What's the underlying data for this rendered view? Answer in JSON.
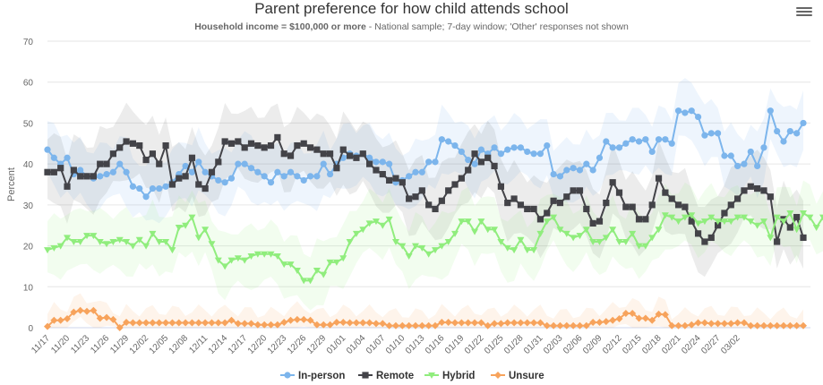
{
  "chart_data": {
    "type": "line",
    "title": "Parent preference for how child attends school",
    "subtitle_bold": "Household income = $100,000 or more",
    "subtitle_rest": " - National sample; 7-day window; 'Other' responses not shown",
    "xlabel": "",
    "ylabel": "Percent",
    "ylim": [
      0,
      70
    ],
    "yticks": [
      0,
      10,
      20,
      30,
      40,
      50,
      60,
      70
    ],
    "grid": true,
    "legend_position": "bottom-center",
    "x_start": "11/17",
    "x_end": "03/03",
    "xtick_labels": [
      "11/17",
      "11/20",
      "11/23",
      "11/26",
      "11/29",
      "12/02",
      "12/05",
      "12/08",
      "12/11",
      "12/14",
      "12/17",
      "12/20",
      "12/23",
      "12/26",
      "12/29",
      "01/01",
      "01/04",
      "01/07",
      "01/10",
      "01/13",
      "01/16",
      "01/19",
      "01/22",
      "01/25",
      "01/28",
      "01/31",
      "02/03",
      "02/06",
      "02/09",
      "02/12",
      "02/15",
      "02/18",
      "02/21",
      "02/24",
      "02/27",
      "03/02"
    ],
    "series": [
      {
        "name": "In-person",
        "color": "#7cb5ec",
        "marker": "circle",
        "values": [
          43.5,
          41.5,
          40,
          41.5,
          37.5,
          38.5,
          37,
          36.5,
          37,
          37.5,
          38,
          40,
          38,
          34.5,
          34,
          32,
          34,
          34,
          34.5,
          35.5,
          37.5,
          39.5,
          38,
          40.5,
          38,
          37,
          36,
          35.5,
          36.5,
          40,
          40,
          39,
          38,
          37,
          35.5,
          38,
          37,
          38,
          37,
          36,
          37,
          37,
          40,
          37.5,
          40,
          41.5,
          42.5,
          42,
          42.5,
          41.5,
          40.5,
          40.5,
          40,
          35.5,
          36,
          37,
          38,
          38,
          40.5,
          40.5,
          46,
          45.5,
          44.5,
          43,
          41,
          40,
          43.5,
          42.5,
          44,
          42.5,
          43.5,
          44,
          44,
          43,
          42.5,
          42.5,
          44.5,
          37.5,
          37,
          38.5,
          39,
          38.5,
          40,
          38.5,
          41.5,
          45.5,
          44,
          44,
          45,
          46,
          45.5,
          46,
          43,
          46,
          46,
          45,
          53,
          52.5,
          53,
          51.5,
          47,
          47.5,
          47.5,
          42,
          42,
          39.5,
          40,
          43,
          39.5,
          44,
          53,
          48,
          45.5,
          48,
          47.5,
          50
        ]
      },
      {
        "name": "Remote",
        "color": "#434348",
        "marker": "square",
        "values": [
          38,
          38,
          39,
          34.5,
          38.5,
          37,
          37,
          37,
          40,
          40,
          42.5,
          44,
          45.5,
          45,
          44.5,
          41,
          42.5,
          40,
          44.5,
          35,
          36.5,
          37,
          41.5,
          35,
          34,
          38,
          40.5,
          45.5,
          45,
          45.5,
          44,
          45,
          44.5,
          44,
          44.5,
          46.5,
          42.5,
          42,
          44.5,
          45,
          44,
          43.5,
          42.5,
          42.5,
          39,
          43.5,
          42,
          41.5,
          42.5,
          40,
          38.5,
          37.5,
          36,
          36.5,
          35.5,
          31.5,
          32,
          33.5,
          30,
          29,
          31,
          33.5,
          35,
          36.5,
          38.5,
          42.5,
          40.5,
          41.5,
          39.5,
          34.5,
          30.5,
          31.5,
          30,
          29,
          29,
          26.5,
          28,
          31,
          30.5,
          32,
          33.5,
          33.5,
          29,
          25.5,
          26,
          30.5,
          35.5,
          33,
          29.5,
          29.5,
          26.5,
          26.5,
          30,
          36.5,
          33,
          31.5,
          30,
          29.5,
          26,
          23,
          21,
          22,
          25,
          28,
          30,
          31.5,
          33.5,
          34.5,
          34,
          33.5,
          32,
          21,
          26.5,
          24.5,
          27,
          22
        ]
      },
      {
        "name": "Hybrid",
        "color": "#90ed7d",
        "marker": "triangle-down",
        "values": [
          19,
          19.5,
          20,
          22,
          21,
          21,
          22.5,
          22.5,
          21,
          20.5,
          21,
          21.5,
          21,
          20,
          21.5,
          20,
          23,
          21,
          21,
          19,
          24.5,
          25,
          27,
          22,
          24,
          20.5,
          16.5,
          15,
          16.5,
          17,
          16.5,
          17.5,
          18,
          18,
          18,
          17.5,
          15.5,
          15.5,
          14,
          11.5,
          11.5,
          14,
          13,
          16,
          16,
          17,
          21,
          23,
          24,
          25.5,
          26,
          25,
          26.5,
          21,
          20,
          17.5,
          20,
          19.5,
          18,
          19,
          20,
          21,
          23,
          26,
          26,
          23.5,
          26,
          24,
          24,
          21,
          19.5,
          19,
          21.5,
          19,
          19,
          23,
          26,
          27,
          24,
          23,
          22,
          22.5,
          24,
          21,
          21,
          22,
          24,
          21,
          21,
          23,
          20,
          20,
          22,
          24,
          27.5,
          27,
          26,
          27,
          27.5,
          25.5,
          26,
          27,
          26,
          26,
          26,
          27,
          27,
          26,
          25,
          26,
          22,
          27,
          26,
          28,
          24,
          28,
          27,
          24.5,
          27,
          26.5
        ]
      },
      {
        "name": "Unsure",
        "color": "#f7a35c",
        "marker": "diamond",
        "values": [
          0.3,
          1.8,
          1.8,
          2.2,
          3.8,
          4.2,
          4,
          4.2,
          2.3,
          2.5,
          2,
          0,
          1.3,
          1.2,
          1.2,
          1.2,
          1.2,
          1.2,
          1.2,
          1.2,
          1.2,
          1.2,
          1.2,
          1.2,
          1.2,
          1.2,
          1.2,
          1.2,
          1.8,
          1,
          1,
          1,
          0.7,
          0.7,
          0.7,
          0.7,
          1.3,
          1.8,
          2,
          2,
          1.8,
          0.7,
          0.7,
          0.7,
          1.3,
          1.3,
          1.2,
          1.2,
          1.2,
          1.2,
          1,
          1,
          0.5,
          0.5,
          0.5,
          0.5,
          0.5,
          0.5,
          0.5,
          0.5,
          1.3,
          1.3,
          1.2,
          1.2,
          1.2,
          1.2,
          1.2,
          0.5,
          1,
          1,
          1.2,
          1.2,
          1.2,
          1.2,
          1.2,
          1.2,
          0.5,
          0.5,
          0.5,
          0.5,
          0.5,
          0.5,
          0.5,
          1.3,
          1.3,
          1.5,
          1.8,
          2.2,
          3.5,
          3.5,
          2.3,
          2.3,
          1.8,
          3.3,
          3.2,
          0.5,
          0.5,
          0.5,
          0.7,
          1.2,
          1.2,
          1,
          1,
          1,
          1,
          1.2,
          1.2,
          0.5,
          0.5,
          0.5,
          0.5,
          0.5,
          0.5,
          0.5,
          0.5,
          0.5
        ]
      }
    ]
  },
  "menu_icon": "hamburger-menu-icon"
}
